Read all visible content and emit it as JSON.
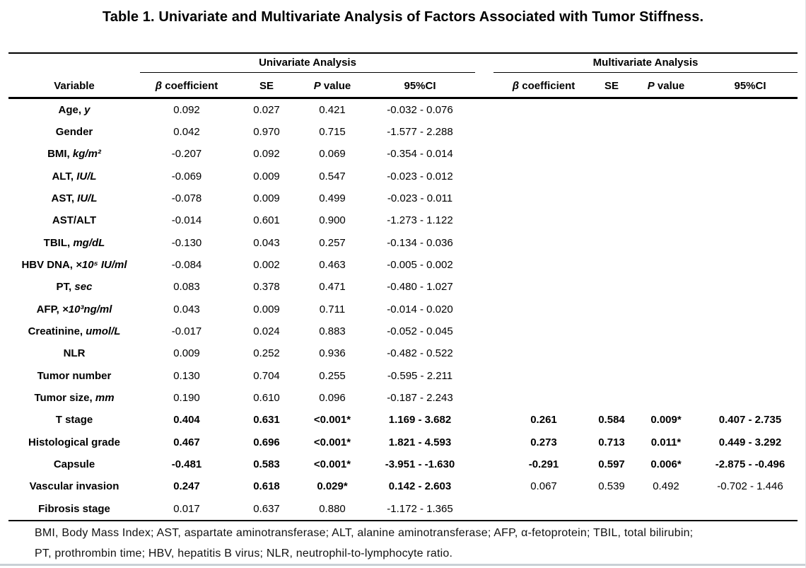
{
  "page": {
    "title": "Table 1. Univariate and Multivariate Analysis of Factors Associated with Tumor Stiffness."
  },
  "table": {
    "groups": {
      "univariate": "Univariate Analysis",
      "multivariate": "Multivariate Analysis"
    },
    "headers": {
      "variable": "Variable",
      "beta_symbol": "β",
      "beta_label": "coefficient",
      "se": "SE",
      "p_symbol": "P",
      "p_label": "value",
      "ci": "95%CI"
    },
    "rows": [
      {
        "name": "Age,",
        "unit": "y",
        "u": [
          "0.092",
          "0.027",
          "0.421",
          "-0.032 - 0.076"
        ],
        "m": [
          "",
          "",
          "",
          ""
        ],
        "bold_u": false,
        "bold_m": false
      },
      {
        "name": "Gender",
        "unit": "",
        "u": [
          "0.042",
          "0.970",
          "0.715",
          "-1.577 - 2.288"
        ],
        "m": [
          "",
          "",
          "",
          ""
        ],
        "bold_u": false,
        "bold_m": false
      },
      {
        "name": "BMI,",
        "unit": "kg/m²",
        "u": [
          "-0.207",
          "0.092",
          "0.069",
          "-0.354 - 0.014"
        ],
        "m": [
          "",
          "",
          "",
          ""
        ],
        "bold_u": false,
        "bold_m": false
      },
      {
        "name": "ALT,",
        "unit": "IU/L",
        "u": [
          "-0.069",
          "0.009",
          "0.547",
          "-0.023 - 0.012"
        ],
        "m": [
          "",
          "",
          "",
          ""
        ],
        "bold_u": false,
        "bold_m": false
      },
      {
        "name": "AST,",
        "unit": "IU/L",
        "u": [
          "-0.078",
          "0.009",
          "0.499",
          "-0.023 - 0.011"
        ],
        "m": [
          "",
          "",
          "",
          ""
        ],
        "bold_u": false,
        "bold_m": false
      },
      {
        "name": "AST/ALT",
        "unit": "",
        "u": [
          "-0.014",
          "0.601",
          "0.900",
          "-1.273 - 1.122"
        ],
        "m": [
          "",
          "",
          "",
          ""
        ],
        "bold_u": false,
        "bold_m": false
      },
      {
        "name": "TBIL,",
        "unit": "mg/dL",
        "u": [
          "-0.130",
          "0.043",
          "0.257",
          "-0.134 - 0.036"
        ],
        "m": [
          "",
          "",
          "",
          ""
        ],
        "bold_u": false,
        "bold_m": false
      },
      {
        "name": "HBV DNA,",
        "unit": "×10⁵ IU/ml",
        "u": [
          "-0.084",
          "0.002",
          "0.463",
          "-0.005 - 0.002"
        ],
        "m": [
          "",
          "",
          "",
          ""
        ],
        "bold_u": false,
        "bold_m": false
      },
      {
        "name": "PT,",
        "unit": "sec",
        "u": [
          "0.083",
          "0.378",
          "0.471",
          "-0.480 - 1.027"
        ],
        "m": [
          "",
          "",
          "",
          ""
        ],
        "bold_u": false,
        "bold_m": false
      },
      {
        "name": "AFP,",
        "unit": "×10³ng/ml",
        "u": [
          "0.043",
          "0.009",
          "0.711",
          "-0.014 - 0.020"
        ],
        "m": [
          "",
          "",
          "",
          ""
        ],
        "bold_u": false,
        "bold_m": false
      },
      {
        "name": "Creatinine,",
        "unit": "umol/L",
        "u": [
          "-0.017",
          "0.024",
          "0.883",
          "-0.052 - 0.045"
        ],
        "m": [
          "",
          "",
          "",
          ""
        ],
        "bold_u": false,
        "bold_m": false
      },
      {
        "name": "NLR",
        "unit": "",
        "u": [
          "0.009",
          "0.252",
          "0.936",
          "-0.482 - 0.522"
        ],
        "m": [
          "",
          "",
          "",
          ""
        ],
        "bold_u": false,
        "bold_m": false
      },
      {
        "name": "Tumor number",
        "unit": "",
        "u": [
          "0.130",
          "0.704",
          "0.255",
          "-0.595 - 2.211"
        ],
        "m": [
          "",
          "",
          "",
          ""
        ],
        "bold_u": false,
        "bold_m": false
      },
      {
        "name": "Tumor size,",
        "unit": "mm",
        "u": [
          "0.190",
          "0.610",
          "0.096",
          "-0.187 - 2.243"
        ],
        "m": [
          "",
          "",
          "",
          ""
        ],
        "bold_u": false,
        "bold_m": false
      },
      {
        "name": "T stage",
        "unit": "",
        "u": [
          "0.404",
          "0.631",
          "<0.001*",
          "1.169 - 3.682"
        ],
        "m": [
          "0.261",
          "0.584",
          "0.009*",
          "0.407 - 2.735"
        ],
        "bold_u": true,
        "bold_m": true
      },
      {
        "name": "Histological grade",
        "unit": "",
        "u": [
          "0.467",
          "0.696",
          "<0.001*",
          "1.821 - 4.593"
        ],
        "m": [
          "0.273",
          "0.713",
          "0.011*",
          "0.449 - 3.292"
        ],
        "bold_u": true,
        "bold_m": true
      },
      {
        "name": "Capsule",
        "unit": "",
        "u": [
          "-0.481",
          "0.583",
          "<0.001*",
          "-3.951 - -1.630"
        ],
        "m": [
          "-0.291",
          "0.597",
          "0.006*",
          "-2.875 - -0.496"
        ],
        "bold_u": true,
        "bold_m": true
      },
      {
        "name": "Vascular invasion",
        "unit": "",
        "u": [
          "0.247",
          "0.618",
          "0.029*",
          "0.142 - 2.603"
        ],
        "m": [
          "0.067",
          "0.539",
          "0.492",
          "-0.702 - 1.446"
        ],
        "bold_u": true,
        "bold_m": false
      },
      {
        "name": "Fibrosis stage",
        "unit": "",
        "u": [
          "0.017",
          "0.637",
          "0.880",
          "-1.172 - 1.365"
        ],
        "m": [
          "",
          "",
          "",
          ""
        ],
        "bold_u": false,
        "bold_m": false
      }
    ]
  },
  "footnotes": {
    "line1": "BMI, Body Mass Index; AST, aspartate aminotransferase; ALT, alanine aminotransferase; AFP, α-fetoprotein; TBIL, total bilirubin;",
    "line2": "PT, prothrombin time; HBV, hepatitis B virus; NLR, neutrophil-to-lymphocyte ratio."
  },
  "colors": {
    "text": "#000000",
    "rule": "#000000",
    "window_edge": "#c9d0d5",
    "window_edge_right": "#e0e3e6"
  }
}
